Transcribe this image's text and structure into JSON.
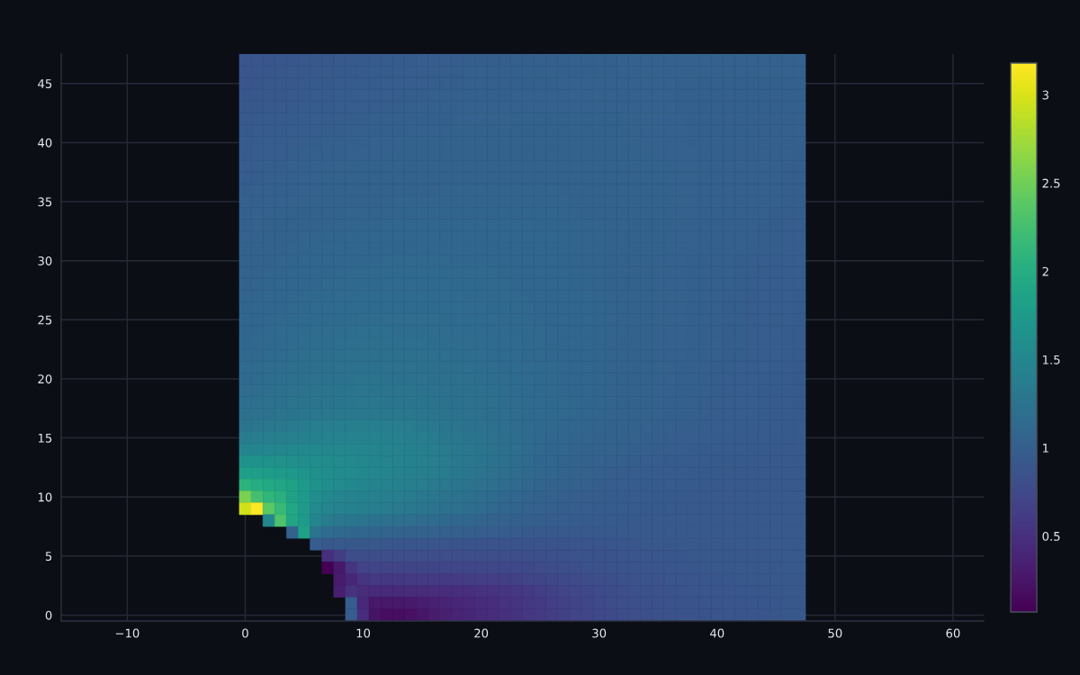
{
  "chart_data": {
    "type": "heatmap",
    "x": [
      0,
      1,
      2,
      3,
      4,
      5,
      6,
      7,
      8,
      9,
      10,
      11,
      12,
      13,
      14,
      15,
      16,
      17,
      18,
      19,
      20,
      21,
      22,
      23,
      24,
      25,
      26,
      27,
      28,
      29,
      30,
      31,
      32,
      33,
      34,
      35,
      36,
      37,
      38,
      39,
      40,
      41,
      42,
      43,
      44,
      45,
      46,
      47
    ],
    "cells": [
      [
        0.88,
        0.89,
        0.89,
        0.9,
        0.9,
        0.91,
        0.92,
        0.92,
        0.93,
        0.93,
        0.94,
        0.95,
        0.95,
        0.96,
        0.96,
        0.97,
        0.97,
        0.98,
        0.98,
        0.99,
        0.99,
        0.99,
        0.99,
        1.0,
        1.0,
        1.0,
        1.0,
        1.01,
        1.01,
        1.01,
        1.01,
        1.01,
        1.02,
        1.02,
        1.02,
        1.02,
        1.02,
        1.02,
        1.02,
        1.02,
        1.02,
        1.02,
        1.02,
        1.02,
        1.02,
        1.02,
        1.02,
        1.02
      ],
      [
        0.89,
        0.9,
        0.9,
        0.91,
        0.91,
        0.92,
        0.93,
        0.93,
        0.94,
        0.94,
        0.95,
        0.96,
        0.96,
        0.97,
        0.97,
        0.98,
        0.98,
        0.99,
        0.99,
        1.0,
        1.0,
        1.0,
        1.0,
        1.01,
        1.01,
        1.01,
        1.01,
        1.01,
        1.01,
        1.01,
        1.01,
        1.01,
        1.02,
        1.02,
        1.02,
        1.02,
        1.02,
        1.02,
        1.02,
        1.02,
        1.02,
        1.02,
        1.02,
        1.02,
        1.02,
        1.02,
        1.02,
        1.02
      ],
      [
        0.89,
        0.9,
        0.91,
        0.91,
        0.92,
        0.93,
        0.94,
        0.94,
        0.95,
        0.95,
        0.96,
        0.96,
        0.97,
        0.97,
        0.98,
        0.98,
        0.99,
        0.99,
        0.99,
        1.0,
        1.0,
        1.0,
        1.0,
        1.01,
        1.01,
        1.01,
        1.01,
        1.02,
        1.02,
        1.02,
        1.02,
        1.02,
        1.02,
        1.02,
        1.02,
        1.02,
        1.02,
        1.01,
        1.01,
        1.01,
        1.01,
        1.01,
        1.01,
        1.01,
        1.01,
        1.01,
        1.01,
        1.01
      ],
      [
        0.9,
        0.91,
        0.92,
        0.92,
        0.93,
        0.94,
        0.95,
        0.95,
        0.96,
        0.96,
        0.97,
        0.97,
        0.98,
        0.98,
        0.99,
        0.99,
        1.0,
        1.0,
        1.0,
        1.01,
        1.01,
        1.01,
        1.01,
        1.02,
        1.02,
        1.02,
        1.02,
        1.02,
        1.02,
        1.02,
        1.02,
        1.02,
        1.02,
        1.02,
        1.02,
        1.02,
        1.02,
        1.01,
        1.01,
        1.01,
        1.01,
        1.01,
        1.01,
        1.01,
        1.01,
        1.01,
        1.01,
        1.01
      ],
      [
        0.91,
        0.92,
        0.93,
        0.93,
        0.94,
        0.95,
        0.96,
        0.96,
        0.97,
        0.97,
        0.98,
        0.98,
        0.99,
        0.99,
        1.0,
        1.0,
        1.01,
        1.01,
        1.01,
        1.02,
        1.02,
        1.02,
        1.02,
        1.02,
        1.02,
        1.02,
        1.02,
        1.02,
        1.02,
        1.02,
        1.02,
        1.02,
        1.02,
        1.02,
        1.02,
        1.02,
        1.02,
        1.01,
        1.01,
        1.01,
        1.01,
        1.01,
        1.01,
        1.01,
        1.01,
        1.01,
        1.01,
        1.01
      ],
      [
        0.93,
        0.94,
        0.95,
        0.95,
        0.96,
        0.97,
        0.97,
        0.98,
        0.98,
        0.99,
        0.99,
        1.0,
        1.0,
        1.0,
        1.01,
        1.01,
        1.01,
        1.01,
        1.02,
        1.02,
        1.02,
        1.02,
        1.02,
        1.03,
        1.03,
        1.03,
        1.03,
        1.03,
        1.03,
        1.03,
        1.03,
        1.03,
        1.03,
        1.02,
        1.02,
        1.02,
        1.02,
        1.02,
        1.01,
        1.01,
        1.01,
        1.01,
        1.01,
        1.01,
        1.0,
        1.0,
        1.0,
        1.0
      ],
      [
        0.94,
        0.95,
        0.96,
        0.96,
        0.97,
        0.98,
        0.98,
        0.99,
        0.99,
        1.0,
        1.0,
        1.01,
        1.01,
        1.01,
        1.02,
        1.02,
        1.02,
        1.02,
        1.03,
        1.03,
        1.03,
        1.03,
        1.03,
        1.03,
        1.03,
        1.03,
        1.03,
        1.03,
        1.03,
        1.03,
        1.03,
        1.03,
        1.03,
        1.02,
        1.02,
        1.02,
        1.02,
        1.02,
        1.01,
        1.01,
        1.01,
        1.01,
        1.01,
        1.01,
        1.0,
        1.0,
        1.0,
        1.0
      ],
      [
        0.95,
        0.96,
        0.97,
        0.97,
        0.98,
        0.99,
        0.99,
        1.0,
        1.0,
        1.01,
        1.01,
        1.02,
        1.02,
        1.02,
        1.03,
        1.03,
        1.03,
        1.03,
        1.04,
        1.04,
        1.04,
        1.04,
        1.04,
        1.04,
        1.04,
        1.04,
        1.04,
        1.04,
        1.03,
        1.03,
        1.03,
        1.03,
        1.03,
        1.02,
        1.02,
        1.02,
        1.02,
        1.02,
        1.01,
        1.01,
        1.01,
        1.01,
        1.01,
        1.01,
        1.0,
        1.0,
        1.0,
        1.0
      ],
      [
        0.96,
        0.97,
        0.98,
        0.98,
        0.99,
        1.0,
        1.0,
        1.01,
        1.01,
        1.02,
        1.02,
        1.02,
        1.02,
        1.03,
        1.03,
        1.03,
        1.03,
        1.04,
        1.04,
        1.04,
        1.04,
        1.04,
        1.04,
        1.04,
        1.04,
        1.04,
        1.04,
        1.04,
        1.04,
        1.04,
        1.04,
        1.04,
        1.03,
        1.03,
        1.03,
        1.03,
        1.02,
        1.02,
        1.02,
        1.01,
        1.01,
        1.01,
        1.0,
        1.0,
        1.0,
        1.0,
        1.0,
        0.99
      ],
      [
        0.97,
        0.98,
        0.99,
        0.99,
        1.0,
        1.01,
        1.01,
        1.02,
        1.02,
        1.03,
        1.03,
        1.03,
        1.03,
        1.04,
        1.04,
        1.04,
        1.04,
        1.05,
        1.05,
        1.05,
        1.05,
        1.05,
        1.05,
        1.05,
        1.05,
        1.05,
        1.05,
        1.05,
        1.04,
        1.04,
        1.04,
        1.04,
        1.04,
        1.03,
        1.03,
        1.03,
        1.03,
        1.02,
        1.02,
        1.01,
        1.01,
        1.01,
        1.0,
        1.0,
        1.0,
        1.0,
        0.99,
        0.99
      ],
      [
        0.98,
        0.99,
        1.0,
        1.0,
        1.01,
        1.02,
        1.02,
        1.03,
        1.03,
        1.04,
        1.04,
        1.04,
        1.04,
        1.05,
        1.05,
        1.05,
        1.05,
        1.05,
        1.05,
        1.05,
        1.05,
        1.05,
        1.05,
        1.05,
        1.05,
        1.05,
        1.05,
        1.05,
        1.04,
        1.04,
        1.04,
        1.04,
        1.04,
        1.03,
        1.03,
        1.03,
        1.03,
        1.02,
        1.02,
        1.01,
        1.01,
        1.01,
        1.0,
        1.0,
        1.0,
        1.0,
        0.99,
        0.99
      ],
      [
        0.99,
        1.0,
        1.0,
        1.01,
        1.01,
        1.02,
        1.02,
        1.03,
        1.03,
        1.04,
        1.04,
        1.04,
        1.04,
        1.05,
        1.05,
        1.05,
        1.05,
        1.06,
        1.06,
        1.06,
        1.06,
        1.06,
        1.06,
        1.06,
        1.06,
        1.06,
        1.06,
        1.05,
        1.05,
        1.05,
        1.05,
        1.05,
        1.04,
        1.04,
        1.03,
        1.03,
        1.03,
        1.02,
        1.02,
        1.01,
        1.01,
        1.01,
        1.0,
        1.0,
        1.0,
        1.0,
        0.99,
        0.99
      ],
      [
        1.0,
        1.01,
        1.01,
        1.02,
        1.02,
        1.03,
        1.03,
        1.04,
        1.04,
        1.05,
        1.05,
        1.05,
        1.05,
        1.06,
        1.06,
        1.06,
        1.06,
        1.06,
        1.06,
        1.06,
        1.06,
        1.06,
        1.06,
        1.06,
        1.06,
        1.06,
        1.06,
        1.06,
        1.05,
        1.05,
        1.05,
        1.05,
        1.04,
        1.04,
        1.03,
        1.03,
        1.03,
        1.02,
        1.02,
        1.01,
        1.01,
        1.01,
        1.0,
        1.0,
        1.0,
        1.0,
        0.99,
        0.99
      ],
      [
        1.01,
        1.02,
        1.02,
        1.03,
        1.03,
        1.04,
        1.04,
        1.05,
        1.05,
        1.06,
        1.06,
        1.06,
        1.06,
        1.07,
        1.07,
        1.07,
        1.07,
        1.07,
        1.07,
        1.07,
        1.07,
        1.07,
        1.07,
        1.07,
        1.07,
        1.07,
        1.07,
        1.06,
        1.06,
        1.05,
        1.05,
        1.05,
        1.04,
        1.04,
        1.03,
        1.03,
        1.03,
        1.02,
        1.02,
        1.01,
        1.01,
        1.01,
        1.0,
        1.0,
        1.0,
        0.99,
        0.99,
        0.99
      ],
      [
        1.01,
        1.02,
        1.03,
        1.03,
        1.04,
        1.05,
        1.05,
        1.06,
        1.06,
        1.07,
        1.07,
        1.07,
        1.08,
        1.08,
        1.08,
        1.08,
        1.08,
        1.08,
        1.08,
        1.08,
        1.08,
        1.08,
        1.08,
        1.08,
        1.08,
        1.07,
        1.07,
        1.07,
        1.06,
        1.06,
        1.06,
        1.05,
        1.05,
        1.04,
        1.04,
        1.03,
        1.03,
        1.02,
        1.02,
        1.01,
        1.01,
        1.0,
        1.0,
        1.0,
        0.99,
        0.99,
        0.98,
        0.98
      ],
      [
        1.02,
        1.03,
        1.04,
        1.04,
        1.05,
        1.06,
        1.06,
        1.07,
        1.07,
        1.08,
        1.08,
        1.08,
        1.09,
        1.09,
        1.09,
        1.09,
        1.09,
        1.09,
        1.09,
        1.09,
        1.09,
        1.09,
        1.09,
        1.08,
        1.08,
        1.08,
        1.08,
        1.07,
        1.07,
        1.06,
        1.06,
        1.05,
        1.05,
        1.04,
        1.04,
        1.03,
        1.03,
        1.02,
        1.02,
        1.01,
        1.01,
        1.0,
        1.0,
        1.0,
        0.99,
        0.99,
        0.98,
        0.98
      ],
      [
        1.03,
        1.04,
        1.05,
        1.05,
        1.06,
        1.07,
        1.07,
        1.08,
        1.08,
        1.09,
        1.09,
        1.09,
        1.1,
        1.1,
        1.1,
        1.1,
        1.1,
        1.1,
        1.1,
        1.1,
        1.1,
        1.1,
        1.09,
        1.09,
        1.08,
        1.08,
        1.08,
        1.07,
        1.07,
        1.06,
        1.06,
        1.05,
        1.05,
        1.04,
        1.04,
        1.03,
        1.03,
        1.02,
        1.02,
        1.01,
        1.01,
        1.0,
        1.0,
        0.99,
        0.99,
        0.99,
        0.98,
        0.98
      ],
      [
        1.03,
        1.04,
        1.05,
        1.06,
        1.07,
        1.08,
        1.08,
        1.09,
        1.09,
        1.1,
        1.1,
        1.1,
        1.11,
        1.11,
        1.11,
        1.11,
        1.11,
        1.11,
        1.1,
        1.1,
        1.1,
        1.1,
        1.1,
        1.09,
        1.09,
        1.08,
        1.08,
        1.07,
        1.07,
        1.06,
        1.06,
        1.05,
        1.05,
        1.04,
        1.04,
        1.03,
        1.02,
        1.02,
        1.01,
        1.01,
        1.0,
        1.0,
        0.99,
        0.99,
        0.98,
        0.98,
        0.98,
        0.97
      ],
      [
        1.04,
        1.05,
        1.06,
        1.07,
        1.08,
        1.09,
        1.09,
        1.1,
        1.1,
        1.11,
        1.11,
        1.11,
        1.12,
        1.12,
        1.12,
        1.12,
        1.12,
        1.12,
        1.11,
        1.11,
        1.11,
        1.11,
        1.1,
        1.1,
        1.09,
        1.09,
        1.08,
        1.08,
        1.07,
        1.07,
        1.06,
        1.05,
        1.05,
        1.04,
        1.04,
        1.03,
        1.02,
        1.02,
        1.01,
        1.01,
        1.0,
        1.0,
        0.99,
        0.99,
        0.98,
        0.98,
        0.97,
        0.97
      ],
      [
        1.05,
        1.06,
        1.07,
        1.08,
        1.09,
        1.1,
        1.1,
        1.11,
        1.11,
        1.12,
        1.12,
        1.12,
        1.13,
        1.13,
        1.13,
        1.13,
        1.13,
        1.13,
        1.12,
        1.12,
        1.12,
        1.11,
        1.11,
        1.1,
        1.1,
        1.09,
        1.08,
        1.08,
        1.07,
        1.07,
        1.06,
        1.05,
        1.05,
        1.04,
        1.04,
        1.03,
        1.02,
        1.02,
        1.01,
        1.01,
        1.0,
        1.0,
        0.99,
        0.99,
        0.98,
        0.98,
        0.97,
        0.97
      ],
      [
        1.06,
        1.07,
        1.08,
        1.09,
        1.1,
        1.11,
        1.12,
        1.12,
        1.13,
        1.13,
        1.14,
        1.14,
        1.14,
        1.14,
        1.14,
        1.14,
        1.14,
        1.13,
        1.13,
        1.12,
        1.12,
        1.12,
        1.11,
        1.11,
        1.1,
        1.1,
        1.09,
        1.09,
        1.08,
        1.08,
        1.07,
        1.06,
        1.05,
        1.05,
        1.04,
        1.03,
        1.02,
        1.02,
        1.01,
        1.01,
        1.0,
        0.99,
        0.99,
        0.98,
        0.98,
        0.97,
        0.97,
        0.96
      ],
      [
        1.07,
        1.08,
        1.09,
        1.1,
        1.11,
        1.12,
        1.13,
        1.13,
        1.14,
        1.14,
        1.15,
        1.15,
        1.15,
        1.15,
        1.15,
        1.15,
        1.15,
        1.14,
        1.14,
        1.13,
        1.13,
        1.12,
        1.12,
        1.11,
        1.11,
        1.1,
        1.09,
        1.09,
        1.08,
        1.08,
        1.07,
        1.06,
        1.05,
        1.05,
        1.04,
        1.03,
        1.02,
        1.02,
        1.01,
        1.01,
        1.0,
        0.99,
        0.99,
        0.98,
        0.98,
        0.97,
        0.97,
        0.96
      ],
      [
        1.08,
        1.09,
        1.1,
        1.11,
        1.12,
        1.13,
        1.14,
        1.14,
        1.15,
        1.15,
        1.16,
        1.16,
        1.16,
        1.16,
        1.16,
        1.16,
        1.16,
        1.15,
        1.15,
        1.14,
        1.14,
        1.13,
        1.12,
        1.12,
        1.11,
        1.1,
        1.09,
        1.09,
        1.08,
        1.08,
        1.07,
        1.06,
        1.05,
        1.05,
        1.04,
        1.03,
        1.02,
        1.02,
        1.01,
        1.01,
        1.0,
        0.99,
        0.99,
        0.98,
        0.98,
        0.97,
        0.97,
        0.96
      ],
      [
        1.09,
        1.1,
        1.11,
        1.13,
        1.14,
        1.15,
        1.16,
        1.16,
        1.17,
        1.17,
        1.18,
        1.18,
        1.18,
        1.17,
        1.17,
        1.17,
        1.16,
        1.16,
        1.15,
        1.15,
        1.14,
        1.13,
        1.13,
        1.12,
        1.12,
        1.11,
        1.1,
        1.09,
        1.09,
        1.08,
        1.07,
        1.06,
        1.05,
        1.05,
        1.04,
        1.03,
        1.02,
        1.02,
        1.01,
        1.01,
        1.0,
        0.99,
        0.99,
        0.98,
        0.97,
        0.97,
        0.96,
        0.95
      ],
      [
        1.1,
        1.11,
        1.12,
        1.14,
        1.15,
        1.16,
        1.17,
        1.17,
        1.18,
        1.18,
        1.19,
        1.19,
        1.19,
        1.18,
        1.18,
        1.18,
        1.17,
        1.17,
        1.16,
        1.16,
        1.15,
        1.14,
        1.13,
        1.13,
        1.12,
        1.11,
        1.1,
        1.09,
        1.09,
        1.08,
        1.07,
        1.06,
        1.05,
        1.05,
        1.04,
        1.03,
        1.02,
        1.02,
        1.01,
        1.01,
        1.0,
        0.99,
        0.99,
        0.98,
        0.97,
        0.97,
        0.96,
        0.95
      ],
      [
        1.11,
        1.12,
        1.14,
        1.15,
        1.17,
        1.18,
        1.19,
        1.19,
        1.2,
        1.2,
        1.21,
        1.21,
        1.21,
        1.2,
        1.2,
        1.19,
        1.18,
        1.18,
        1.17,
        1.17,
        1.16,
        1.15,
        1.14,
        1.13,
        1.12,
        1.11,
        1.1,
        1.09,
        1.09,
        1.08,
        1.07,
        1.06,
        1.05,
        1.05,
        1.04,
        1.03,
        1.02,
        1.02,
        1.01,
        1.01,
        1.0,
        0.99,
        0.99,
        0.98,
        0.97,
        0.97,
        0.96,
        0.95
      ],
      [
        1.13,
        1.14,
        1.16,
        1.17,
        1.18,
        1.19,
        1.2,
        1.21,
        1.22,
        1.22,
        1.23,
        1.23,
        1.22,
        1.22,
        1.22,
        1.21,
        1.2,
        1.19,
        1.19,
        1.18,
        1.17,
        1.16,
        1.15,
        1.14,
        1.13,
        1.12,
        1.11,
        1.1,
        1.09,
        1.08,
        1.07,
        1.06,
        1.05,
        1.05,
        1.04,
        1.03,
        1.02,
        1.01,
        1.01,
        1.0,
        0.99,
        0.99,
        0.98,
        0.97,
        0.97,
        0.96,
        0.95,
        0.94
      ],
      [
        1.14,
        1.15,
        1.17,
        1.18,
        1.2,
        1.21,
        1.22,
        1.23,
        1.24,
        1.24,
        1.25,
        1.25,
        1.24,
        1.23,
        1.23,
        1.22,
        1.21,
        1.2,
        1.2,
        1.19,
        1.18,
        1.17,
        1.16,
        1.14,
        1.13,
        1.12,
        1.11,
        1.1,
        1.09,
        1.08,
        1.07,
        1.06,
        1.05,
        1.05,
        1.04,
        1.03,
        1.02,
        1.01,
        1.01,
        1.0,
        0.99,
        0.98,
        0.98,
        0.97,
        0.96,
        0.96,
        0.95,
        0.94
      ],
      [
        1.16,
        1.17,
        1.19,
        1.21,
        1.22,
        1.24,
        1.25,
        1.26,
        1.27,
        1.27,
        1.28,
        1.27,
        1.26,
        1.26,
        1.25,
        1.24,
        1.23,
        1.22,
        1.21,
        1.2,
        1.19,
        1.18,
        1.17,
        1.15,
        1.14,
        1.12,
        1.11,
        1.1,
        1.09,
        1.08,
        1.07,
        1.06,
        1.05,
        1.05,
        1.04,
        1.03,
        1.02,
        1.01,
        1.01,
        1.0,
        0.99,
        0.98,
        0.98,
        0.97,
        0.96,
        0.96,
        0.95,
        0.94
      ],
      [
        1.18,
        1.2,
        1.22,
        1.23,
        1.25,
        1.26,
        1.27,
        1.28,
        1.29,
        1.29,
        1.3,
        1.3,
        1.29,
        1.28,
        1.28,
        1.27,
        1.25,
        1.24,
        1.23,
        1.22,
        1.2,
        1.19,
        1.17,
        1.16,
        1.14,
        1.13,
        1.12,
        1.11,
        1.09,
        1.08,
        1.07,
        1.06,
        1.05,
        1.04,
        1.03,
        1.02,
        1.01,
        1.01,
        1.0,
        0.99,
        0.98,
        0.98,
        0.97,
        0.97,
        0.96,
        0.95,
        0.95,
        0.94
      ],
      [
        1.2,
        1.22,
        1.24,
        1.26,
        1.27,
        1.29,
        1.3,
        1.31,
        1.32,
        1.32,
        1.33,
        1.32,
        1.31,
        1.31,
        1.3,
        1.29,
        1.27,
        1.26,
        1.24,
        1.23,
        1.21,
        1.19,
        1.18,
        1.16,
        1.15,
        1.13,
        1.12,
        1.11,
        1.09,
        1.08,
        1.07,
        1.06,
        1.05,
        1.04,
        1.03,
        1.02,
        1.01,
        1.01,
        1.0,
        0.99,
        0.98,
        0.98,
        0.97,
        0.97,
        0.96,
        0.95,
        0.95,
        0.94
      ],
      [
        1.26,
        1.28,
        1.3,
        1.32,
        1.34,
        1.36,
        1.37,
        1.38,
        1.39,
        1.39,
        1.4,
        1.39,
        1.38,
        1.37,
        1.35,
        1.33,
        1.31,
        1.29,
        1.26,
        1.24,
        1.22,
        1.2,
        1.18,
        1.16,
        1.14,
        1.12,
        1.11,
        1.09,
        1.08,
        1.07,
        1.06,
        1.05,
        1.04,
        1.03,
        1.02,
        1.01,
        1.0,
        0.99,
        0.99,
        0.98,
        0.97,
        0.97,
        0.96,
        0.96,
        0.95,
        0.95,
        0.94,
        0.94
      ],
      [
        1.35,
        1.37,
        1.38,
        1.4,
        1.41,
        1.43,
        1.43,
        1.44,
        1.44,
        1.45,
        1.45,
        1.44,
        1.43,
        1.41,
        1.39,
        1.37,
        1.35,
        1.32,
        1.3,
        1.27,
        1.25,
        1.22,
        1.19,
        1.17,
        1.14,
        1.12,
        1.1,
        1.09,
        1.07,
        1.06,
        1.05,
        1.04,
        1.03,
        1.02,
        1.01,
        1.0,
        0.99,
        0.98,
        0.97,
        0.97,
        0.96,
        0.96,
        0.95,
        0.95,
        0.95,
        0.94,
        0.94,
        0.94
      ],
      [
        1.48,
        1.49,
        1.5,
        1.5,
        1.51,
        1.52,
        1.52,
        1.51,
        1.51,
        1.5,
        1.49,
        1.48,
        1.46,
        1.44,
        1.42,
        1.4,
        1.38,
        1.35,
        1.32,
        1.3,
        1.27,
        1.24,
        1.21,
        1.18,
        1.14,
        1.11,
        1.09,
        1.08,
        1.06,
        1.05,
        1.04,
        1.03,
        1.02,
        1.01,
        1.0,
        0.99,
        0.98,
        0.97,
        0.96,
        0.96,
        0.95,
        0.95,
        0.95,
        0.94,
        0.94,
        0.94,
        0.93,
        0.93
      ],
      [
        1.65,
        1.65,
        1.64,
        1.63,
        1.62,
        1.6,
        1.58,
        1.57,
        1.55,
        1.53,
        1.51,
        1.49,
        1.47,
        1.45,
        1.43,
        1.41,
        1.38,
        1.35,
        1.32,
        1.3,
        1.27,
        1.24,
        1.2,
        1.17,
        1.13,
        1.1,
        1.08,
        1.06,
        1.05,
        1.03,
        1.02,
        1.01,
        1.0,
        0.99,
        0.98,
        0.97,
        0.96,
        0.96,
        0.95,
        0.95,
        0.94,
        0.94,
        0.94,
        0.94,
        0.93,
        0.93,
        0.93,
        0.93
      ],
      [
        1.8,
        1.8,
        1.78,
        1.75,
        1.72,
        1.68,
        1.62,
        1.59,
        1.57,
        1.55,
        1.52,
        1.5,
        1.48,
        1.45,
        1.43,
        1.4,
        1.37,
        1.35,
        1.32,
        1.29,
        1.26,
        1.22,
        1.19,
        1.16,
        1.12,
        1.1,
        1.08,
        1.06,
        1.04,
        1.02,
        1.0,
        0.99,
        0.98,
        0.97,
        0.96,
        0.96,
        0.95,
        0.95,
        0.94,
        0.94,
        0.94,
        0.93,
        0.93,
        0.93,
        0.93,
        0.93,
        0.93,
        0.93
      ],
      [
        2.08,
        2.0,
        1.95,
        1.9,
        1.85,
        1.75,
        1.65,
        1.58,
        1.55,
        1.52,
        1.48,
        1.46,
        1.44,
        1.42,
        1.4,
        1.37,
        1.34,
        1.31,
        1.28,
        1.25,
        1.22,
        1.19,
        1.16,
        1.13,
        1.1,
        1.07,
        1.05,
        1.03,
        1.01,
        1.0,
        0.99,
        0.98,
        0.97,
        0.96,
        0.96,
        0.95,
        0.95,
        0.94,
        0.94,
        0.94,
        0.93,
        0.93,
        0.93,
        0.93,
        0.93,
        0.93,
        0.93,
        0.93
      ],
      [
        2.55,
        2.25,
        2.1,
        2.05,
        1.85,
        1.75,
        1.6,
        1.52,
        1.48,
        1.45,
        1.43,
        1.41,
        1.39,
        1.37,
        1.35,
        1.32,
        1.29,
        1.26,
        1.23,
        1.2,
        1.17,
        1.14,
        1.11,
        1.08,
        1.06,
        1.04,
        1.02,
        1.0,
        0.99,
        0.98,
        0.97,
        0.96,
        0.96,
        0.95,
        0.95,
        0.94,
        0.94,
        0.94,
        0.93,
        0.93,
        0.93,
        0.93,
        0.93,
        0.93,
        0.93,
        0.93,
        0.93,
        0.93
      ],
      [
        2.95,
        3.18,
        2.4,
        2.15,
        1.92,
        1.75,
        1.55,
        1.47,
        1.44,
        1.42,
        1.4,
        1.38,
        1.36,
        1.34,
        1.32,
        1.29,
        1.26,
        1.23,
        1.2,
        1.17,
        1.14,
        1.11,
        1.08,
        1.06,
        1.04,
        1.02,
        1.0,
        0.99,
        0.98,
        0.97,
        0.96,
        0.96,
        0.95,
        0.95,
        0.94,
        0.94,
        0.94,
        0.93,
        0.93,
        0.93,
        0.93,
        0.93,
        0.93,
        0.93,
        0.93,
        0.93,
        0.93,
        0.93
      ],
      [
        null,
        null,
        1.5,
        2.3,
        1.9,
        1.75,
        1.48,
        1.35,
        1.3,
        1.28,
        1.26,
        1.24,
        1.22,
        1.2,
        1.18,
        1.16,
        1.14,
        1.12,
        1.1,
        1.08,
        1.06,
        1.04,
        1.02,
        1.01,
        1.0,
        0.99,
        0.98,
        0.97,
        0.96,
        0.96,
        0.95,
        0.95,
        0.94,
        0.94,
        0.94,
        0.93,
        0.93,
        0.93,
        0.93,
        0.93,
        0.93,
        0.93,
        0.93,
        0.93,
        0.93,
        0.93,
        0.93,
        0.93
      ],
      [
        null,
        null,
        null,
        null,
        1.05,
        1.85,
        1.25,
        1.15,
        1.12,
        1.1,
        1.08,
        1.07,
        1.06,
        1.05,
        1.04,
        1.03,
        1.02,
        1.01,
        1.0,
        0.99,
        0.98,
        0.97,
        0.96,
        0.95,
        0.94,
        0.93,
        0.93,
        0.93,
        0.93,
        0.93,
        0.93,
        0.93,
        0.93,
        0.93,
        0.93,
        0.93,
        0.93,
        0.93,
        0.93,
        0.93,
        0.93,
        0.93,
        0.93,
        0.93,
        0.93,
        0.93,
        0.93,
        0.93
      ],
      [
        null,
        null,
        null,
        null,
        null,
        null,
        0.98,
        0.92,
        0.93,
        0.92,
        0.91,
        0.91,
        0.9,
        0.9,
        0.89,
        0.89,
        0.88,
        0.88,
        0.87,
        0.87,
        0.86,
        0.86,
        0.86,
        0.86,
        0.86,
        0.86,
        0.87,
        0.87,
        0.88,
        0.88,
        0.89,
        0.89,
        0.9,
        0.9,
        0.91,
        0.91,
        0.91,
        0.92,
        0.92,
        0.92,
        0.92,
        0.92,
        0.93,
        0.93,
        0.93,
        0.93,
        0.93,
        0.93
      ],
      [
        null,
        null,
        null,
        null,
        null,
        null,
        null,
        0.5,
        0.62,
        0.78,
        0.79,
        0.79,
        0.8,
        0.8,
        0.8,
        0.8,
        0.8,
        0.8,
        0.8,
        0.8,
        0.8,
        0.8,
        0.8,
        0.8,
        0.81,
        0.82,
        0.83,
        0.84,
        0.85,
        0.86,
        0.87,
        0.87,
        0.88,
        0.88,
        0.89,
        0.89,
        0.9,
        0.9,
        0.91,
        0.91,
        0.91,
        0.92,
        0.92,
        0.92,
        0.92,
        0.93,
        0.93,
        0.93
      ],
      [
        null,
        null,
        null,
        null,
        null,
        null,
        null,
        0.07,
        0.27,
        0.55,
        0.68,
        0.7,
        0.7,
        0.7,
        0.71,
        0.71,
        0.71,
        0.72,
        0.72,
        0.72,
        0.73,
        0.73,
        0.74,
        0.75,
        0.76,
        0.78,
        0.79,
        0.81,
        0.82,
        0.84,
        0.85,
        0.86,
        0.87,
        0.88,
        0.88,
        0.89,
        0.89,
        0.9,
        0.9,
        0.91,
        0.91,
        0.91,
        0.92,
        0.92,
        0.92,
        0.92,
        0.93,
        0.93
      ],
      [
        null,
        null,
        null,
        null,
        null,
        null,
        null,
        null,
        0.3,
        0.4,
        0.55,
        0.57,
        0.58,
        0.58,
        0.59,
        0.59,
        0.6,
        0.6,
        0.61,
        0.62,
        0.63,
        0.64,
        0.65,
        0.67,
        0.69,
        0.71,
        0.73,
        0.75,
        0.77,
        0.79,
        0.81,
        0.82,
        0.84,
        0.85,
        0.86,
        0.87,
        0.88,
        0.88,
        0.89,
        0.89,
        0.9,
        0.9,
        0.91,
        0.91,
        0.91,
        0.92,
        0.92,
        0.92
      ],
      [
        null,
        null,
        null,
        null,
        null,
        null,
        null,
        null,
        0.33,
        0.52,
        0.45,
        0.44,
        0.44,
        0.44,
        0.45,
        0.45,
        0.46,
        0.47,
        0.48,
        0.49,
        0.51,
        0.53,
        0.55,
        0.57,
        0.6,
        0.63,
        0.66,
        0.69,
        0.72,
        0.75,
        0.77,
        0.79,
        0.81,
        0.83,
        0.84,
        0.85,
        0.86,
        0.87,
        0.88,
        0.88,
        0.89,
        0.89,
        0.9,
        0.9,
        0.9,
        0.91,
        0.91,
        0.91
      ],
      [
        null,
        null,
        null,
        null,
        null,
        null,
        null,
        null,
        null,
        0.98,
        0.42,
        0.27,
        0.27,
        0.27,
        0.28,
        0.32,
        0.35,
        0.38,
        0.4,
        0.42,
        0.45,
        0.48,
        0.51,
        0.54,
        0.57,
        0.6,
        0.64,
        0.67,
        0.7,
        0.73,
        0.76,
        0.78,
        0.8,
        0.82,
        0.83,
        0.84,
        0.85,
        0.86,
        0.87,
        0.88,
        0.88,
        0.89,
        0.89,
        0.9,
        0.9,
        0.9,
        0.91,
        0.91
      ],
      [
        null,
        null,
        null,
        null,
        null,
        null,
        null,
        null,
        null,
        0.98,
        0.48,
        0.22,
        0.17,
        0.17,
        0.2,
        0.25,
        0.3,
        0.34,
        0.38,
        0.41,
        0.44,
        0.47,
        0.5,
        0.53,
        0.56,
        0.59,
        0.62,
        0.66,
        0.69,
        0.72,
        0.75,
        0.77,
        0.79,
        0.81,
        0.82,
        0.84,
        0.85,
        0.86,
        0.87,
        0.87,
        0.88,
        0.88,
        0.89,
        0.89,
        0.9,
        0.9,
        0.91,
        0.91
      ]
    ],
    "clim": [
      0.07,
      3.18
    ],
    "cticks": [
      0.5,
      1,
      1.5,
      2,
      2.5,
      3
    ],
    "xlim": [
      -15.6,
      62.6
    ],
    "ylim": [
      -0.5,
      47.5
    ],
    "xticks": [
      {
        "value": -10,
        "label": "−10"
      },
      0,
      10,
      20,
      30,
      40,
      50,
      60
    ],
    "yticks": [
      0,
      5,
      10,
      15,
      20,
      25,
      30,
      35,
      40,
      45
    ],
    "grid": true
  }
}
